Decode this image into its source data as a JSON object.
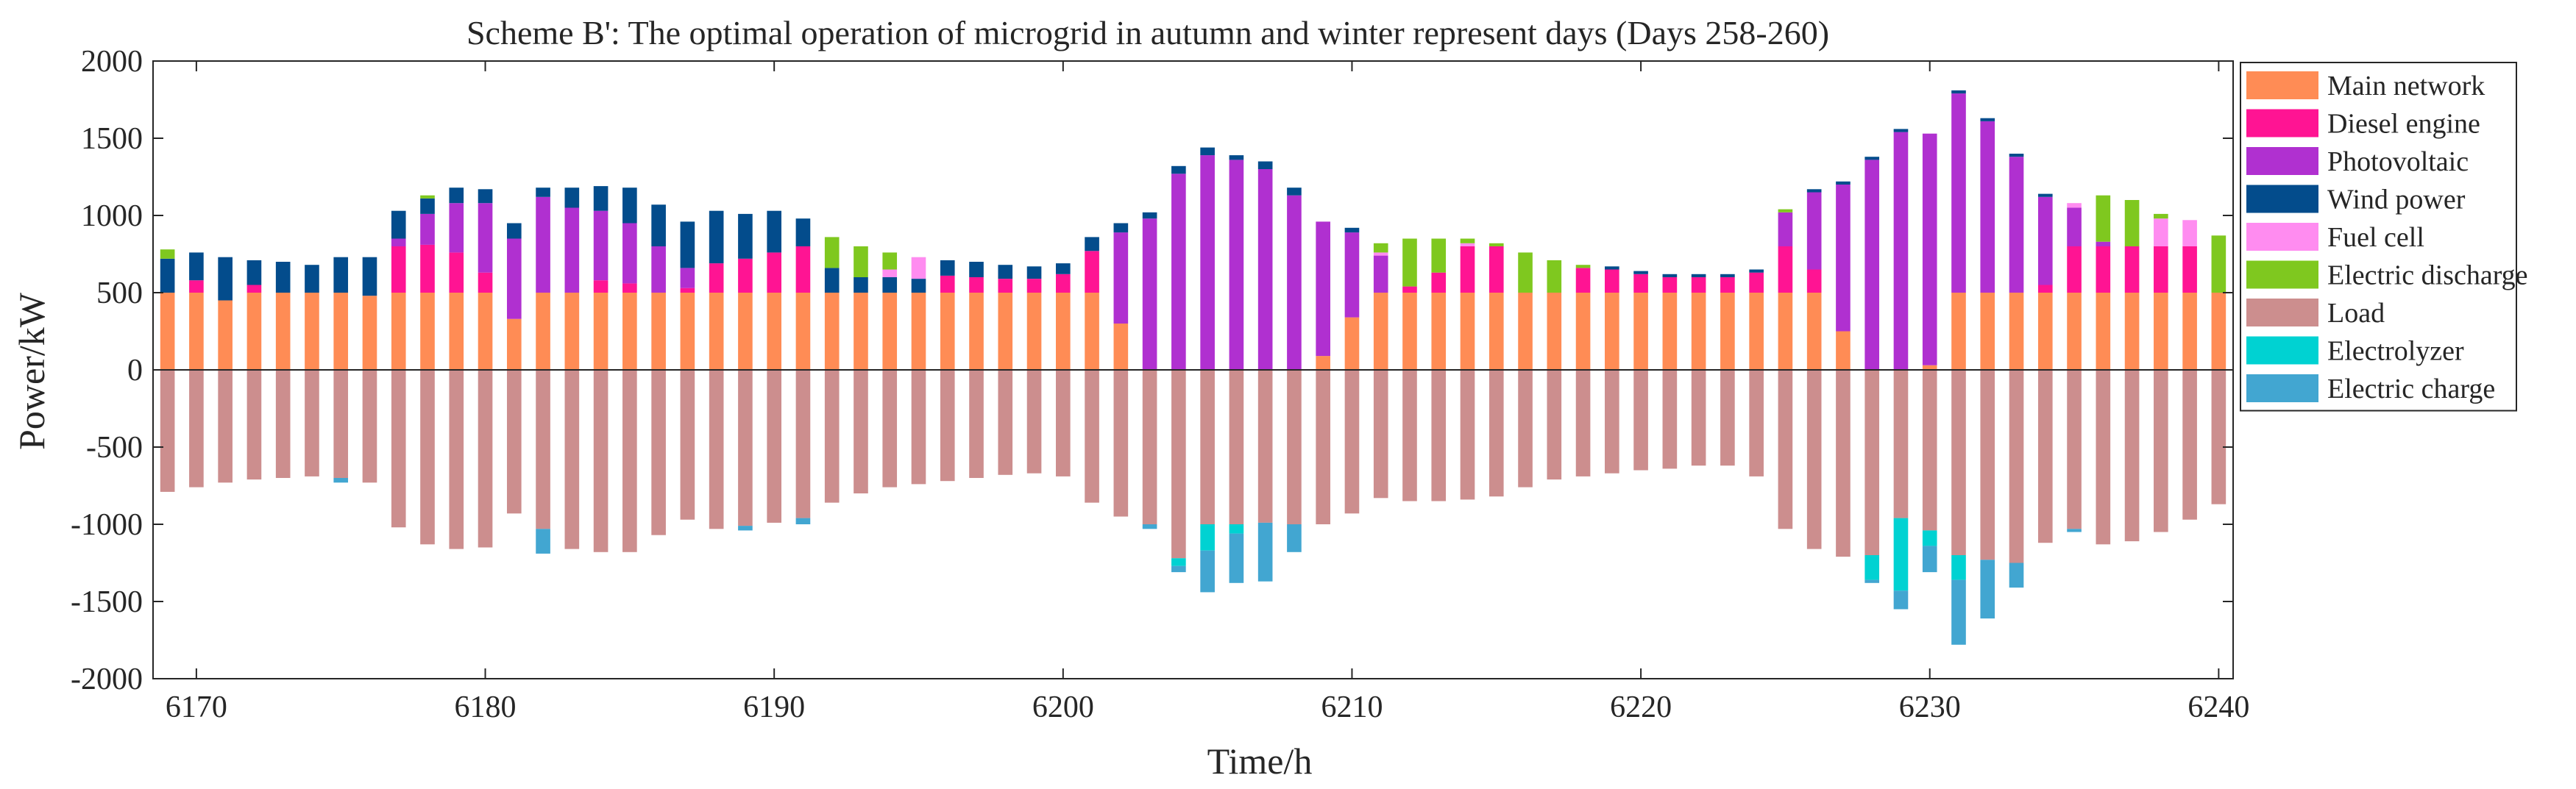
{
  "chart_data": {
    "type": "bar",
    "stacked": true,
    "title": "Scheme B': The optimal operation of microgrid in autumn and winter represent days (Days 258-260)",
    "xlabel": "Time/h",
    "ylabel": "Power/kW",
    "xlim": [
      6168.5,
      6240.5
    ],
    "ylim": [
      -2000,
      2000
    ],
    "xticks": [
      6170,
      6180,
      6190,
      6200,
      6210,
      6220,
      6230,
      6240
    ],
    "yticks": [
      -2000,
      -1500,
      -1000,
      -500,
      0,
      500,
      1000,
      1500,
      2000
    ],
    "legend_position": "top-right",
    "hours": [
      6169,
      6170,
      6171,
      6172,
      6173,
      6174,
      6175,
      6176,
      6177,
      6178,
      6179,
      6180,
      6181,
      6182,
      6183,
      6184,
      6185,
      6186,
      6187,
      6188,
      6189,
      6190,
      6191,
      6192,
      6193,
      6194,
      6195,
      6196,
      6197,
      6198,
      6199,
      6200,
      6201,
      6202,
      6203,
      6204,
      6205,
      6206,
      6207,
      6208,
      6209,
      6210,
      6211,
      6212,
      6213,
      6214,
      6215,
      6216,
      6217,
      6218,
      6219,
      6220,
      6221,
      6222,
      6223,
      6224,
      6225,
      6226,
      6227,
      6228,
      6229,
      6230,
      6231,
      6232,
      6233,
      6234,
      6235,
      6236,
      6237,
      6238,
      6239,
      6240
    ],
    "series": [
      {
        "name": "Main network",
        "color": "#FF8C55",
        "values": [
          500,
          500,
          450,
          500,
          500,
          500,
          500,
          480,
          500,
          500,
          500,
          500,
          330,
          500,
          500,
          500,
          500,
          500,
          500,
          500,
          500,
          500,
          500,
          500,
          500,
          500,
          500,
          500,
          500,
          500,
          500,
          500,
          500,
          300,
          0,
          0,
          0,
          0,
          0,
          0,
          90,
          340,
          500,
          500,
          500,
          500,
          500,
          500,
          500,
          500,
          500,
          500,
          500,
          500,
          500,
          500,
          500,
          500,
          250,
          0,
          0,
          30,
          500,
          500,
          500,
          500,
          500,
          500,
          500,
          500,
          500,
          500
        ]
      },
      {
        "name": "Diesel engine",
        "color": "#FF1493",
        "values": [
          0,
          80,
          0,
          50,
          0,
          0,
          0,
          0,
          300,
          310,
          260,
          130,
          0,
          0,
          0,
          80,
          60,
          0,
          30,
          190,
          220,
          260,
          300,
          0,
          0,
          0,
          0,
          110,
          100,
          90,
          90,
          120,
          270,
          0,
          0,
          0,
          0,
          0,
          0,
          0,
          0,
          0,
          0,
          40,
          130,
          300,
          300,
          0,
          0,
          160,
          150,
          120,
          100,
          100,
          100,
          130,
          300,
          150,
          0,
          0,
          0,
          0,
          0,
          0,
          0,
          50,
          300,
          300,
          300,
          300,
          300,
          0
        ]
      },
      {
        "name": "Photovoltaic",
        "color": "#B030D0",
        "values": [
          0,
          0,
          0,
          0,
          0,
          0,
          0,
          0,
          50,
          200,
          320,
          450,
          520,
          620,
          550,
          450,
          390,
          300,
          130,
          0,
          0,
          0,
          0,
          0,
          0,
          0,
          0,
          0,
          0,
          0,
          0,
          0,
          0,
          590,
          980,
          1270,
          1390,
          1360,
          1300,
          1130,
          870,
          550,
          240,
          0,
          0,
          0,
          0,
          0,
          0,
          0,
          0,
          0,
          0,
          0,
          0,
          0,
          220,
          500,
          950,
          1360,
          1540,
          1500,
          1290,
          1110,
          880,
          570,
          250,
          30,
          0,
          0,
          0,
          0
        ]
      },
      {
        "name": "Wind power",
        "color": "#034C8C",
        "values": [
          220,
          180,
          280,
          160,
          200,
          180,
          230,
          250,
          180,
          100,
          100,
          90,
          100,
          60,
          130,
          160,
          230,
          270,
          300,
          340,
          290,
          270,
          180,
          160,
          100,
          100,
          90,
          100,
          100,
          90,
          80,
          70,
          90,
          60,
          40,
          50,
          50,
          30,
          50,
          50,
          0,
          30,
          0,
          0,
          0,
          0,
          0,
          0,
          0,
          0,
          20,
          20,
          20,
          20,
          20,
          20,
          0,
          20,
          20,
          20,
          20,
          0,
          20,
          20,
          20,
          20,
          0,
          0,
          0,
          0,
          0,
          0
        ]
      },
      {
        "name": "Fuel cell",
        "color": "#FF8CF0",
        "values": [
          0,
          0,
          0,
          0,
          0,
          0,
          0,
          0,
          0,
          0,
          0,
          0,
          0,
          0,
          0,
          0,
          0,
          0,
          0,
          0,
          0,
          0,
          0,
          0,
          0,
          50,
          140,
          0,
          0,
          0,
          0,
          0,
          0,
          0,
          0,
          0,
          0,
          0,
          0,
          0,
          0,
          0,
          20,
          0,
          0,
          20,
          0,
          0,
          0,
          0,
          0,
          0,
          0,
          0,
          0,
          0,
          0,
          0,
          0,
          0,
          0,
          0,
          0,
          0,
          0,
          0,
          30,
          0,
          0,
          180,
          170,
          0
        ]
      },
      {
        "name": "Electric discharge",
        "color": "#7FC81F",
        "values": [
          60,
          0,
          0,
          0,
          0,
          0,
          0,
          0,
          0,
          20,
          0,
          0,
          0,
          0,
          0,
          0,
          0,
          0,
          0,
          0,
          0,
          0,
          0,
          200,
          200,
          110,
          0,
          0,
          0,
          0,
          0,
          0,
          0,
          0,
          0,
          0,
          0,
          0,
          0,
          0,
          0,
          0,
          60,
          310,
          220,
          30,
          20,
          260,
          210,
          20,
          0,
          0,
          0,
          0,
          0,
          0,
          20,
          0,
          0,
          0,
          0,
          0,
          0,
          0,
          0,
          0,
          0,
          300,
          300,
          30,
          0,
          370
        ]
      },
      {
        "name": "Load",
        "color": "#CC8E8E",
        "values": [
          -790,
          -760,
          -730,
          -710,
          -700,
          -690,
          -700,
          -730,
          -1020,
          -1130,
          -1160,
          -1150,
          -930,
          -1030,
          -1160,
          -1180,
          -1180,
          -1070,
          -970,
          -1030,
          -1010,
          -990,
          -960,
          -860,
          -800,
          -760,
          -740,
          -720,
          -700,
          -680,
          -670,
          -690,
          -860,
          -950,
          -1000,
          -1220,
          -1000,
          -1000,
          -990,
          -1000,
          -1000,
          -930,
          -830,
          -850,
          -850,
          -840,
          -820,
          -760,
          -710,
          -690,
          -670,
          -650,
          -640,
          -620,
          -620,
          -690,
          -1030,
          -1160,
          -1210,
          -1200,
          -960,
          -1040,
          -1200,
          -1230,
          -1250,
          -1120,
          -1030,
          -1130,
          -1110,
          -1050,
          -970,
          -870
        ]
      },
      {
        "name": "Electrolyzer",
        "color": "#00D2D2",
        "values": [
          0,
          0,
          0,
          0,
          0,
          0,
          0,
          0,
          0,
          0,
          0,
          0,
          0,
          0,
          0,
          0,
          0,
          0,
          0,
          0,
          0,
          0,
          0,
          0,
          0,
          0,
          0,
          0,
          0,
          0,
          0,
          0,
          0,
          0,
          0,
          -50,
          -170,
          -60,
          0,
          0,
          0,
          0,
          0,
          0,
          0,
          0,
          0,
          0,
          0,
          0,
          0,
          0,
          0,
          0,
          0,
          0,
          0,
          0,
          0,
          -160,
          -470,
          -100,
          -160,
          0,
          0,
          0,
          0,
          0,
          0,
          0,
          0,
          0
        ]
      },
      {
        "name": "Electric charge",
        "color": "#42A6D1",
        "values": [
          0,
          0,
          0,
          0,
          0,
          0,
          -30,
          0,
          0,
          0,
          0,
          0,
          0,
          -160,
          0,
          0,
          0,
          0,
          0,
          0,
          -30,
          0,
          -40,
          0,
          0,
          0,
          0,
          0,
          0,
          0,
          0,
          0,
          0,
          0,
          -30,
          -40,
          -270,
          -320,
          -380,
          -180,
          0,
          0,
          0,
          0,
          0,
          0,
          0,
          0,
          0,
          0,
          0,
          0,
          0,
          0,
          0,
          0,
          0,
          0,
          0,
          -20,
          -120,
          -170,
          -420,
          -380,
          -160,
          0,
          -20,
          0,
          0,
          0,
          0,
          0
        ]
      }
    ]
  }
}
